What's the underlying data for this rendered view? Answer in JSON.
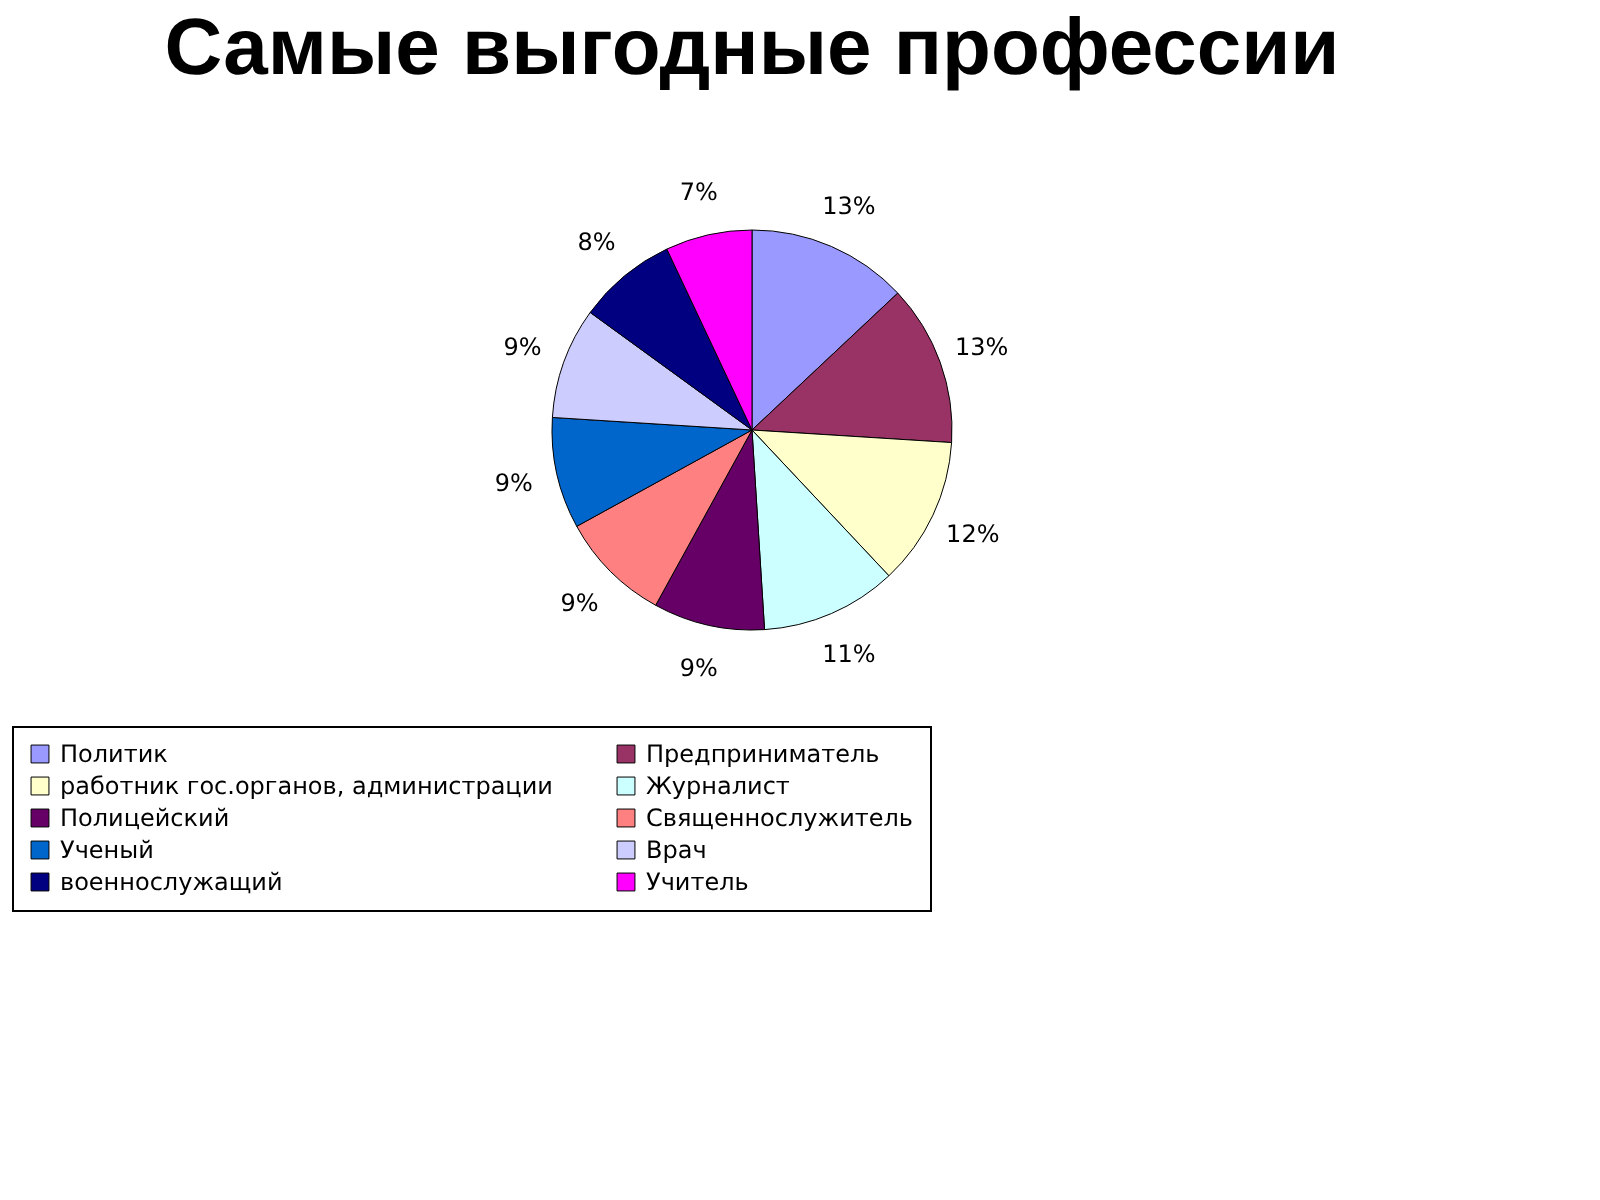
{
  "chart_data": {
    "type": "pie",
    "title": "Самые выгодные профессии",
    "categories": [
      "Политик",
      "Предприниматель",
      "работник гос.органов, администрации",
      "Журналист",
      "Полицейский",
      "Священнослужитель",
      "Ученый",
      "Врач",
      "военнослужащий",
      "Учитель"
    ],
    "values": [
      13,
      13,
      12,
      11,
      9,
      9,
      9,
      9,
      8,
      7
    ],
    "value_labels": [
      "13%",
      "13%",
      "12%",
      "11%",
      "9%",
      "9%",
      "9%",
      "9%",
      "8%",
      "7%"
    ],
    "colors": [
      "#9999ff",
      "#993366",
      "#ffffcc",
      "#ccffff",
      "#660066",
      "#ff8080",
      "#0066cc",
      "#ccccff",
      "#000080",
      "#ff00ff"
    ],
    "legend": "bottom"
  }
}
